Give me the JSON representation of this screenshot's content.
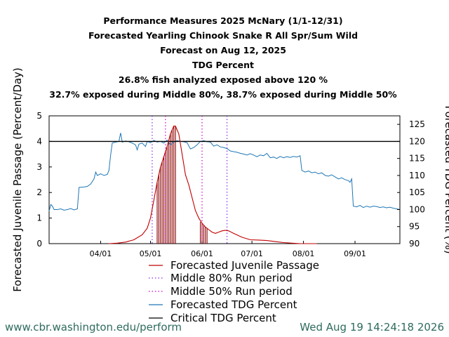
{
  "chart_data": {
    "type": "line",
    "title_lines": [
      "Performance Measures 2025 McNary (1/1-12/31)",
      "Forecasted Yearling Chinook Snake R All Spr/Sum Wild",
      "Forecast on Aug 12, 2025",
      "TDG Percent",
      "26.8% fish analyzed exposed above 120 %",
      "32.7% exposed during Middle 80%, 38.7% exposed during Middle 50%"
    ],
    "ylabel": "Forecasted Juvenile Passage (Percent/Day)",
    "y2label": "Forecasted TDG Percent (%)",
    "ylim": [
      0,
      5
    ],
    "y2lim": [
      90,
      127.5
    ],
    "yticks": [
      "0",
      "1",
      "2",
      "3",
      "4",
      "5"
    ],
    "y2ticks": [
      "90",
      "95",
      "100",
      "105",
      "110",
      "115",
      "120",
      "125"
    ],
    "xticks": [
      {
        "day": 90,
        "label": "04/01"
      },
      {
        "day": 120,
        "label": "05/01"
      },
      {
        "day": 151,
        "label": "06/01"
      },
      {
        "day": 181,
        "label": "07/01"
      },
      {
        "day": 212,
        "label": "08/01"
      },
      {
        "day": 243,
        "label": "09/01"
      }
    ],
    "xlim_day": [
      59,
      270
    ],
    "critical_tdg": 120,
    "middle80_days": [
      121,
      166
    ],
    "middle50_days": [
      129,
      151
    ],
    "passage": [
      [
        95,
        0.0
      ],
      [
        100,
        0.02
      ],
      [
        105,
        0.06
      ],
      [
        110,
        0.15
      ],
      [
        115,
        0.35
      ],
      [
        118,
        0.6
      ],
      [
        120,
        1.0
      ],
      [
        122,
        1.7
      ],
      [
        124,
        2.4
      ],
      [
        126,
        3.0
      ],
      [
        128,
        3.4
      ],
      [
        130,
        3.8
      ],
      [
        132,
        4.3
      ],
      [
        134,
        4.6
      ],
      [
        135,
        4.6
      ],
      [
        137,
        4.3
      ],
      [
        139,
        3.5
      ],
      [
        141,
        2.7
      ],
      [
        143,
        2.3
      ],
      [
        145,
        1.8
      ],
      [
        147,
        1.3
      ],
      [
        149,
        1.0
      ],
      [
        151,
        0.8
      ],
      [
        153,
        0.65
      ],
      [
        155,
        0.55
      ],
      [
        157,
        0.45
      ],
      [
        159,
        0.4
      ],
      [
        161,
        0.45
      ],
      [
        163,
        0.5
      ],
      [
        165,
        0.52
      ],
      [
        167,
        0.5
      ],
      [
        170,
        0.4
      ],
      [
        175,
        0.25
      ],
      [
        180,
        0.15
      ],
      [
        185,
        0.14
      ],
      [
        190,
        0.12
      ],
      [
        195,
        0.08
      ],
      [
        200,
        0.04
      ],
      [
        205,
        0.02
      ],
      [
        210,
        0.0
      ],
      [
        220,
        0.0
      ]
    ],
    "tdg": [
      [
        59,
        99.5
      ],
      [
        60,
        101.5
      ],
      [
        61,
        101.0
      ],
      [
        62,
        100.0
      ],
      [
        64,
        100.0
      ],
      [
        66,
        100.2
      ],
      [
        68,
        99.8
      ],
      [
        70,
        100.0
      ],
      [
        72,
        100.3
      ],
      [
        74,
        99.9
      ],
      [
        76,
        100.2
      ],
      [
        77,
        106.5
      ],
      [
        80,
        106.6
      ],
      [
        82,
        106.8
      ],
      [
        84,
        107.5
      ],
      [
        86,
        109.0
      ],
      [
        87,
        111.0
      ],
      [
        88,
        110.0
      ],
      [
        90,
        110.5
      ],
      [
        92,
        110.0
      ],
      [
        94,
        110.3
      ],
      [
        95,
        111.5
      ],
      [
        96,
        116.0
      ],
      [
        97,
        119.5
      ],
      [
        99,
        119.8
      ],
      [
        101,
        120.0
      ],
      [
        102,
        122.5
      ],
      [
        103,
        119.8
      ],
      [
        105,
        120.1
      ],
      [
        107,
        119.9
      ],
      [
        109,
        119.5
      ],
      [
        111,
        119.0
      ],
      [
        112,
        117.5
      ],
      [
        113,
        119.2
      ],
      [
        115,
        119.5
      ],
      [
        117,
        118.5
      ],
      [
        118,
        120.0
      ],
      [
        120,
        119.6
      ],
      [
        122,
        120.3
      ],
      [
        124,
        119.8
      ],
      [
        126,
        120.0
      ],
      [
        128,
        119.5
      ],
      [
        130,
        120.4
      ],
      [
        132,
        119.0
      ],
      [
        134,
        119.8
      ],
      [
        136,
        120.2
      ],
      [
        138,
        120.0
      ],
      [
        140,
        119.9
      ],
      [
        142,
        119.6
      ],
      [
        144,
        117.8
      ],
      [
        146,
        118.2
      ],
      [
        148,
        119.0
      ],
      [
        150,
        120.0
      ],
      [
        152,
        120.2
      ],
      [
        154,
        119.9
      ],
      [
        156,
        119.8
      ],
      [
        158,
        118.6
      ],
      [
        160,
        119.0
      ],
      [
        162,
        118.4
      ],
      [
        164,
        118.2
      ],
      [
        166,
        117.9
      ],
      [
        168,
        117.2
      ],
      [
        170,
        117.0
      ],
      [
        172,
        116.8
      ],
      [
        174,
        116.5
      ],
      [
        176,
        116.3
      ],
      [
        178,
        116.0
      ],
      [
        180,
        116.4
      ],
      [
        182,
        116.0
      ],
      [
        184,
        115.5
      ],
      [
        186,
        116.0
      ],
      [
        188,
        115.8
      ],
      [
        190,
        116.5
      ],
      [
        192,
        115.2
      ],
      [
        194,
        115.4
      ],
      [
        196,
        115.0
      ],
      [
        198,
        115.6
      ],
      [
        200,
        115.2
      ],
      [
        202,
        115.5
      ],
      [
        204,
        115.3
      ],
      [
        206,
        115.6
      ],
      [
        208,
        115.4
      ],
      [
        210,
        115.8
      ],
      [
        211,
        111.5
      ],
      [
        213,
        111.0
      ],
      [
        215,
        111.3
      ],
      [
        217,
        110.8
      ],
      [
        219,
        111.0
      ],
      [
        221,
        110.5
      ],
      [
        223,
        110.8
      ],
      [
        225,
        110.0
      ],
      [
        227,
        109.8
      ],
      [
        229,
        110.2
      ],
      [
        231,
        109.6
      ],
      [
        233,
        109.0
      ],
      [
        235,
        109.3
      ],
      [
        237,
        108.8
      ],
      [
        239,
        108.5
      ],
      [
        240,
        108.0
      ],
      [
        241,
        109.0
      ],
      [
        242,
        101.0
      ],
      [
        244,
        100.8
      ],
      [
        246,
        101.2
      ],
      [
        248,
        100.6
      ],
      [
        250,
        101.0
      ],
      [
        252,
        100.7
      ],
      [
        254,
        101.0
      ],
      [
        256,
        100.9
      ],
      [
        258,
        100.6
      ],
      [
        260,
        100.8
      ],
      [
        262,
        100.5
      ],
      [
        264,
        100.7
      ],
      [
        266,
        100.4
      ],
      [
        268,
        100.2
      ],
      [
        270,
        100.0
      ]
    ],
    "exposure_bars": [
      [
        124,
        2.4
      ],
      [
        125,
        2.7
      ],
      [
        126,
        3.0
      ],
      [
        127,
        3.2
      ],
      [
        128,
        3.4
      ],
      [
        129,
        3.6
      ],
      [
        130,
        3.8
      ],
      [
        131,
        4.05
      ],
      [
        132,
        4.3
      ],
      [
        133,
        4.45
      ],
      [
        134,
        4.6
      ],
      [
        135,
        4.6
      ],
      [
        150,
        0.85
      ],
      [
        151,
        0.8
      ],
      [
        152,
        0.72
      ],
      [
        153,
        0.65
      ],
      [
        154,
        0.6
      ]
    ],
    "legend": [
      {
        "label": "Forecasted Juvenile Passage",
        "color": "#c00000",
        "style": "solid"
      },
      {
        "label": "Middle 80% Run period",
        "color": "#8a2be2",
        "style": "dotted"
      },
      {
        "label": "Middle 50% Run period",
        "color": "#cc00cc",
        "style": "dotted"
      },
      {
        "label": "Forecasted TDG Percent",
        "color": "#1f77b4",
        "style": "solid"
      },
      {
        "label": "Critical TDG Percent",
        "color": "#000000",
        "style": "solid"
      }
    ]
  },
  "footer": {
    "url": "www.cbr.washington.edu/perform",
    "timestamp": "Wed Aug 19 14:24:18 2026"
  }
}
